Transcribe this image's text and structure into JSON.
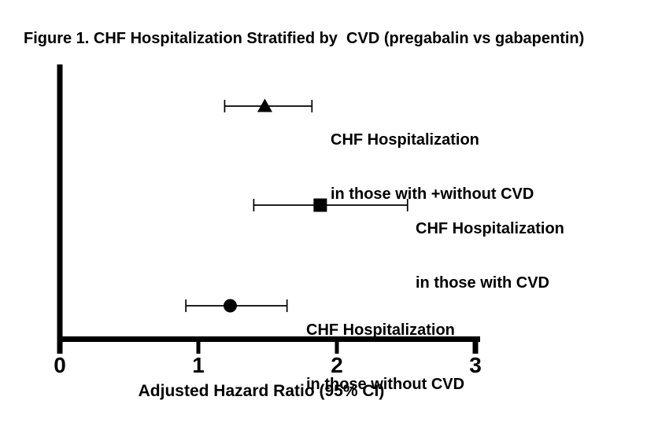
{
  "figure": {
    "title": "Figure 1. CHF Hospitalization Stratified by  CVD (pregabalin vs gabapentin)"
  },
  "chart_data": {
    "type": "scatter",
    "subtype": "forest-plot",
    "title": "Figure 1. CHF Hospitalization Stratified by  CVD (pregabalin vs gabapentin)",
    "xlabel": "Adjusted Hazard Ratio (95% CI)",
    "xlim": [
      0,
      3
    ],
    "xticks": [
      0,
      1,
      2,
      3
    ],
    "grid": false,
    "legend": "none",
    "marker_color": "#000000",
    "axis_color": "#000000",
    "series": [
      {
        "label_line1": "CHF Hospitalization",
        "label_line2": "in those with +without CVD",
        "marker": "triangle",
        "hr": 1.48,
        "ci_low": 1.19,
        "ci_high": 1.82
      },
      {
        "label_line1": "CHF Hospitalization",
        "label_line2": "in those with CVD",
        "marker": "square",
        "hr": 1.88,
        "ci_low": 1.4,
        "ci_high": 2.51
      },
      {
        "label_line1": "CHF Hospitalization",
        "label_line2": "in those without CVD",
        "marker": "circle",
        "hr": 1.23,
        "ci_low": 0.91,
        "ci_high": 1.64
      }
    ]
  }
}
